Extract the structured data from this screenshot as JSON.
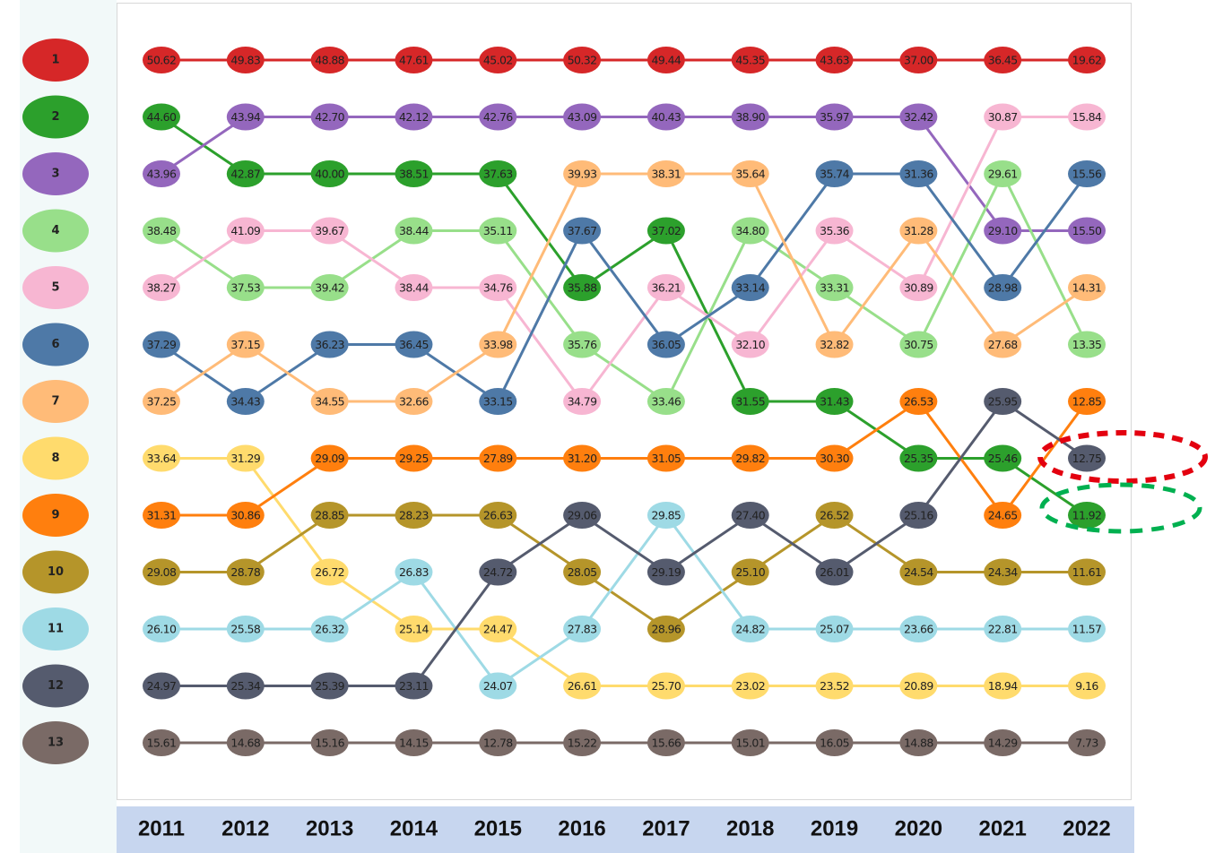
{
  "chart_data": {
    "type": "bump",
    "categories": [
      "2011",
      "2012",
      "2013",
      "2014",
      "2015",
      "2016",
      "2017",
      "2018",
      "2019",
      "2020",
      "2021",
      "2022"
    ],
    "ylim": [
      0,
      14
    ],
    "yticks": [
      1,
      2,
      3,
      4,
      5,
      6,
      7,
      8,
      9,
      10,
      11,
      12,
      13
    ],
    "series": [
      {
        "color": "#d62728",
        "ranks": [
          1,
          1,
          1,
          1,
          1,
          1,
          1,
          1,
          1,
          1,
          1,
          1
        ],
        "values": [
          50.62,
          49.83,
          48.88,
          47.61,
          45.02,
          50.32,
          49.44,
          45.35,
          43.63,
          37.0,
          36.45,
          19.62
        ],
        "value_labels": [
          "50.62",
          "49.83",
          "48.88",
          "47.61",
          "45.02",
          "50.32",
          "49.44",
          "45.35",
          "43.63",
          "37.00",
          "36.45",
          "19.62"
        ]
      },
      {
        "color": "#2ca02c",
        "ranks": [
          2,
          3,
          3,
          3,
          3,
          5,
          4,
          7,
          7,
          8,
          8,
          9
        ],
        "values": [
          44.6,
          42.87,
          40.0,
          38.51,
          37.63,
          35.88,
          37.02,
          31.55,
          31.43,
          25.35,
          25.46,
          11.92
        ],
        "value_labels": [
          "44.60",
          "42.87",
          "40.00",
          "38.51",
          "37.63",
          "35.88",
          "37.02",
          "31.55",
          "31.43",
          "25.35",
          "25.46",
          "11.92"
        ]
      },
      {
        "color": "#9467bd",
        "ranks": [
          3,
          2,
          2,
          2,
          2,
          2,
          2,
          2,
          2,
          2,
          4,
          4
        ],
        "values": [
          43.96,
          43.94,
          42.7,
          42.12,
          42.76,
          43.09,
          40.43,
          38.9,
          35.97,
          32.42,
          29.1,
          15.5
        ],
        "value_labels": [
          "43.96",
          "43.94",
          "42.70",
          "42.12",
          "42.76",
          "43.09",
          "40.43",
          "38.90",
          "35.97",
          "32.42",
          "29.10",
          "15.50"
        ]
      },
      {
        "color": "#98df8a",
        "ranks": [
          4,
          5,
          5,
          4,
          4,
          6,
          7,
          4,
          5,
          6,
          3,
          6
        ],
        "values": [
          38.48,
          37.53,
          39.42,
          38.44,
          35.11,
          35.76,
          33.46,
          34.8,
          33.31,
          30.75,
          29.61,
          13.35
        ],
        "value_labels": [
          "38.48",
          "37.53",
          "39.42",
          "38.44",
          "35.11",
          "35.76",
          "33.46",
          "34.80",
          "33.31",
          "30.75",
          "29.61",
          "13.35"
        ]
      },
      {
        "color": "#f7b6d2",
        "ranks": [
          5,
          4,
          4,
          5,
          5,
          7,
          5,
          6,
          4,
          5,
          2,
          2
        ],
        "values": [
          38.27,
          41.09,
          39.67,
          38.44,
          34.76,
          34.79,
          36.21,
          32.1,
          35.36,
          30.89,
          30.87,
          15.84
        ],
        "value_labels": [
          "38.27",
          "41.09",
          "39.67",
          "38.44",
          "34.76",
          "34.79",
          "36.21",
          "32.10",
          "35.36",
          "30.89",
          "30.87",
          "15.84"
        ]
      },
      {
        "color": "#4e79a7",
        "ranks": [
          6,
          7,
          6,
          6,
          7,
          4,
          6,
          5,
          3,
          3,
          5,
          3
        ],
        "values": [
          37.29,
          34.43,
          36.23,
          36.45,
          33.15,
          37.67,
          36.05,
          33.14,
          35.74,
          31.36,
          28.98,
          15.56
        ],
        "value_labels": [
          "37.29",
          "34.43",
          "36.23",
          "36.45",
          "33.15",
          "37.67",
          "36.05",
          "33.14",
          "35.74",
          "31.36",
          "28.98",
          "15.56"
        ]
      },
      {
        "color": "#ffbb78",
        "ranks": [
          7,
          6,
          7,
          7,
          6,
          3,
          3,
          3,
          6,
          4,
          6,
          5
        ],
        "values": [
          37.25,
          37.15,
          34.55,
          32.66,
          33.98,
          39.93,
          38.31,
          35.64,
          32.82,
          31.28,
          27.68,
          14.31
        ],
        "value_labels": [
          "37.25",
          "37.15",
          "34.55",
          "32.66",
          "33.98",
          "39.93",
          "38.31",
          "35.64",
          "32.82",
          "31.28",
          "27.68",
          "14.31"
        ]
      },
      {
        "color": "#ffdb6d",
        "ranks": [
          8,
          8,
          10,
          11,
          11,
          12,
          12,
          12,
          12,
          12,
          12,
          12
        ],
        "values": [
          33.64,
          31.29,
          26.72,
          25.14,
          24.47,
          26.61,
          25.7,
          23.02,
          23.52,
          20.89,
          18.94,
          9.16
        ],
        "value_labels": [
          "33.64",
          "31.29",
          "26.72",
          "25.14",
          "24.47",
          "26.61",
          "25.70",
          "23.02",
          "23.52",
          "20.89",
          "18.94",
          "9.16"
        ]
      },
      {
        "color": "#ff7f0e",
        "ranks": [
          9,
          9,
          8,
          8,
          8,
          8,
          8,
          8,
          8,
          7,
          9,
          7
        ],
        "values": [
          31.31,
          30.86,
          29.09,
          29.25,
          27.89,
          31.2,
          31.05,
          29.82,
          30.3,
          26.53,
          24.65,
          12.85
        ],
        "value_labels": [
          "31.31",
          "30.86",
          "29.09",
          "29.25",
          "27.89",
          "31.20",
          "31.05",
          "29.82",
          "30.30",
          "26.53",
          "24.65",
          "12.85"
        ]
      },
      {
        "color": "#b5952a",
        "ranks": [
          10,
          10,
          9,
          9,
          9,
          10,
          11,
          10,
          9,
          10,
          10,
          10
        ],
        "values": [
          29.08,
          28.78,
          28.85,
          28.23,
          26.63,
          28.05,
          28.96,
          25.1,
          26.52,
          24.54,
          24.34,
          11.61
        ],
        "value_labels": [
          "29.08",
          "28.78",
          "28.85",
          "28.23",
          "26.63",
          "28.05",
          "28.96",
          "25.10",
          "26.52",
          "24.54",
          "24.34",
          "11.61"
        ]
      },
      {
        "color": "#9edae5",
        "ranks": [
          11,
          11,
          11,
          10,
          12,
          11,
          9,
          11,
          11,
          11,
          11,
          11
        ],
        "values": [
          26.1,
          25.58,
          26.32,
          26.83,
          24.07,
          27.83,
          29.85,
          24.82,
          25.07,
          23.66,
          22.81,
          11.57
        ],
        "value_labels": [
          "26.10",
          "25.58",
          "26.32",
          "26.83",
          "24.07",
          "27.83",
          "29.85",
          "24.82",
          "25.07",
          "23.66",
          "22.81",
          "11.57"
        ]
      },
      {
        "color": "#555b6e",
        "ranks": [
          12,
          12,
          12,
          12,
          10,
          9,
          10,
          9,
          10,
          9,
          7,
          8
        ],
        "values": [
          24.97,
          25.34,
          25.39,
          23.11,
          24.72,
          29.06,
          29.19,
          27.4,
          26.01,
          25.16,
          25.95,
          12.75
        ],
        "value_labels": [
          "24.97",
          "25.34",
          "25.39",
          "23.11",
          "24.72",
          "29.06",
          "29.19",
          "27.40",
          "26.01",
          "25.16",
          "25.95",
          "12.75"
        ]
      },
      {
        "color": "#7a6a66",
        "ranks": [
          13,
          13,
          13,
          13,
          13,
          13,
          13,
          13,
          13,
          13,
          13,
          13
        ],
        "values": [
          15.61,
          14.68,
          15.16,
          14.15,
          12.78,
          15.22,
          15.66,
          15.01,
          16.05,
          14.88,
          14.29,
          7.73
        ],
        "value_labels": [
          "15.61",
          "14.68",
          "15.16",
          "14.15",
          "12.78",
          "15.22",
          "15.66",
          "15.01",
          "16.05",
          "14.88",
          "14.29",
          "7.73"
        ]
      }
    ]
  }
}
